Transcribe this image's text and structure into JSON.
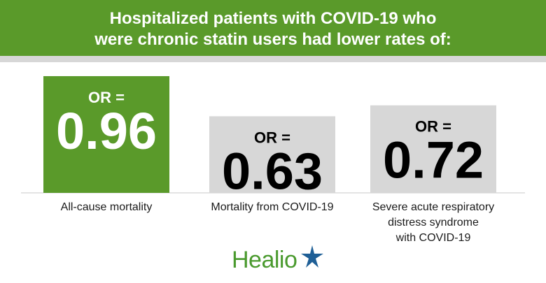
{
  "header": {
    "title_line1": "Hospitalized patients with COVID-19 who",
    "title_line2": "were chronic statin users had lower rates of:"
  },
  "chart_data": {
    "type": "bar",
    "title": "Hospitalized patients with COVID-19 who were chronic statin users had lower rates of:",
    "value_prefix": "OR =",
    "categories": [
      [
        "All-cause mortality"
      ],
      [
        "Mortality from COVID-19"
      ],
      [
        "Severe acute respiratory",
        "distress syndrome",
        "with COVID-19"
      ]
    ],
    "values": [
      0.96,
      0.63,
      0.72
    ],
    "value_labels": [
      "0.96",
      "0.63",
      "0.72"
    ],
    "ylim": [
      0,
      1.0
    ],
    "grid": false,
    "legend": "none",
    "colors": {
      "highlight_bar": "#5a9a2a",
      "bar": "#d7d7d7",
      "highlight_text": "#ffffff",
      "text": "#000000"
    }
  },
  "brand": {
    "logo_text": "Healio",
    "logo_icon": "star-icon",
    "logo_color": "#4a9a2e",
    "star_color": "#1f5f96"
  }
}
